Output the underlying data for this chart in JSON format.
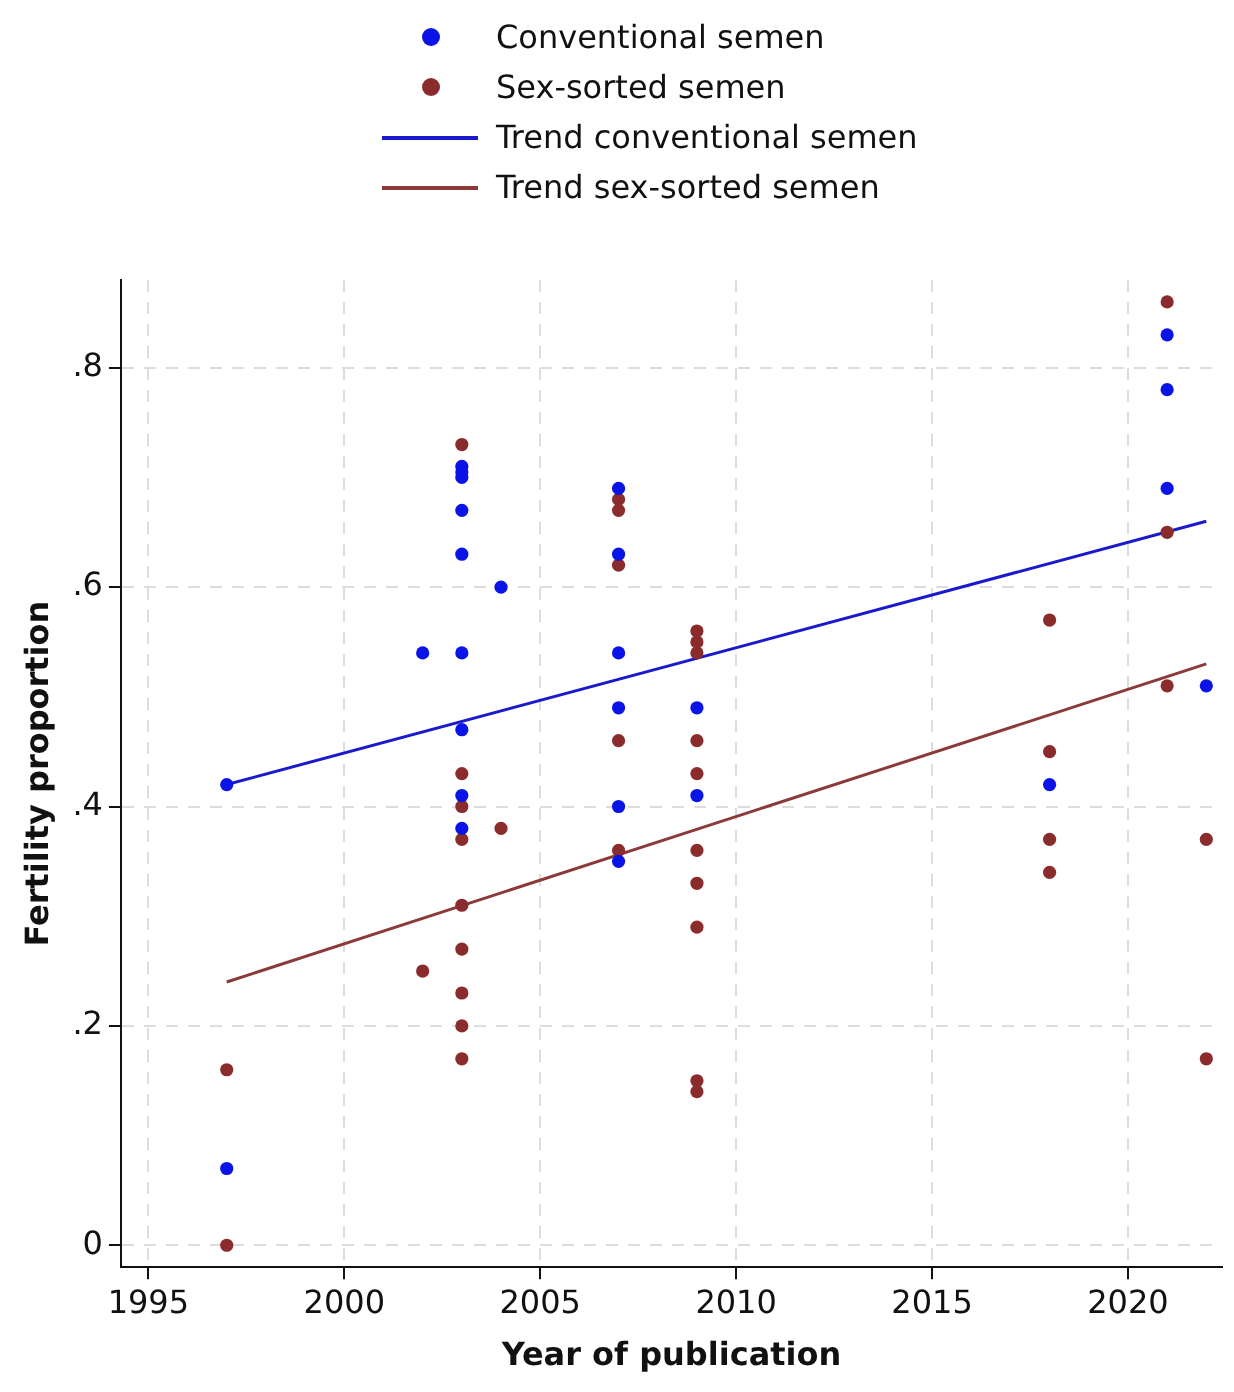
{
  "chart_data": {
    "type": "scatter",
    "xlabel": "Year of publication",
    "ylabel": "Fertility proportion",
    "xlim": [
      1994.3,
      2022.4
    ],
    "xticks": [
      1995,
      2000,
      2005,
      2010,
      2015,
      2020
    ],
    "ylim": [
      -0.02,
      0.88
    ],
    "yticks": [
      {
        "value": 0,
        "label": "0"
      },
      {
        "value": 0.2,
        "label": ".2"
      },
      {
        "value": 0.4,
        "label": ".4"
      },
      {
        "value": 0.6,
        "label": ".6"
      },
      {
        "value": 0.8,
        "label": ".8"
      }
    ],
    "grid": true,
    "legend": "top",
    "marker": "circle",
    "series": [
      {
        "name": "Conventional semen",
        "color": "#0a14e6",
        "x": [
          1997,
          1997,
          2002,
          2003,
          2003,
          2003,
          2003,
          2003,
          2003,
          2003,
          2003,
          2003,
          2004,
          2007,
          2007,
          2007,
          2007,
          2007,
          2007,
          2009,
          2009,
          2018,
          2021,
          2021,
          2021,
          2022
        ],
        "values": [
          0.42,
          0.07,
          0.54,
          0.71,
          0.705,
          0.7,
          0.67,
          0.63,
          0.54,
          0.47,
          0.41,
          0.38,
          0.6,
          0.69,
          0.63,
          0.54,
          0.49,
          0.4,
          0.35,
          0.49,
          0.41,
          0.42,
          0.83,
          0.78,
          0.69,
          0.51
        ]
      },
      {
        "name": "Sex-sorted semen",
        "color": "#8b2c2c",
        "x": [
          1997,
          1997,
          2002,
          2003,
          2003,
          2003,
          2003,
          2003,
          2003,
          2003,
          2003,
          2003,
          2004,
          2007,
          2007,
          2007,
          2007,
          2007,
          2009,
          2009,
          2009,
          2009,
          2009,
          2009,
          2009,
          2009,
          2009,
          2009,
          2018,
          2018,
          2018,
          2018,
          2021,
          2021,
          2021,
          2022,
          2022
        ],
        "values": [
          0.16,
          0,
          0.25,
          0.73,
          0.43,
          0.4,
          0.37,
          0.31,
          0.27,
          0.23,
          0.2,
          0.17,
          0.38,
          0.68,
          0.67,
          0.62,
          0.46,
          0.36,
          0.56,
          0.55,
          0.54,
          0.46,
          0.43,
          0.36,
          0.33,
          0.29,
          0.15,
          0.14,
          0.57,
          0.45,
          0.37,
          0.34,
          0.86,
          0.65,
          0.51,
          0.37,
          0.17
        ]
      },
      {
        "name": "Trend conventional semen",
        "type": "line",
        "marker": "none",
        "color": "#1a1acc",
        "x": [
          1997,
          2022
        ],
        "values": [
          0.42,
          0.66
        ]
      },
      {
        "name": "Trend sex-sorted semen",
        "type": "line",
        "marker": "none",
        "color": "#8b3a3a",
        "x": [
          1997,
          2022
        ],
        "values": [
          0.24,
          0.53
        ]
      }
    ]
  }
}
